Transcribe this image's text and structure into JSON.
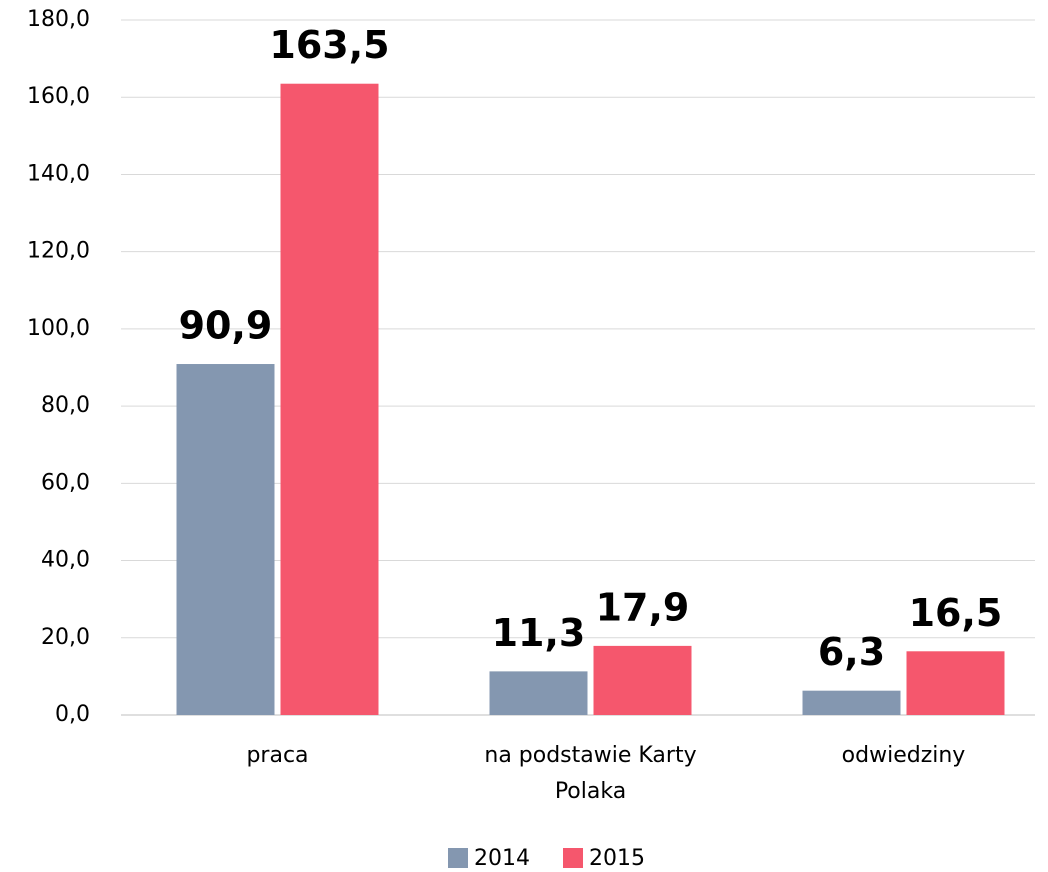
{
  "chart_data": {
    "type": "bar",
    "categories": [
      "praca",
      "na podstawie Karty Polaka",
      "odwiedziny"
    ],
    "series": [
      {
        "name": "2014",
        "color": "#8497b0",
        "values": [
          90.9,
          11.3,
          6.3
        ],
        "value_labels": [
          "90,9",
          "11,3",
          "6,3"
        ]
      },
      {
        "name": "2015",
        "color": "#f5576d",
        "values": [
          163.5,
          17.9,
          16.5
        ],
        "value_labels": [
          "163,5",
          "17,9",
          "16,5"
        ]
      }
    ],
    "ylim": [
      0,
      180
    ],
    "yticks": [
      {
        "value": 0,
        "label": "0,0"
      },
      {
        "value": 20,
        "label": "20,0"
      },
      {
        "value": 40,
        "label": "40,0"
      },
      {
        "value": 60,
        "label": "60,0"
      },
      {
        "value": 80,
        "label": "80,0"
      },
      {
        "value": 100,
        "label": "100,0"
      },
      {
        "value": 120,
        "label": "120,0"
      },
      {
        "value": 140,
        "label": "140,0"
      },
      {
        "value": 160,
        "label": "160,0"
      },
      {
        "value": 180,
        "label": "180,0"
      }
    ],
    "grid": true,
    "legend": "bottom"
  }
}
